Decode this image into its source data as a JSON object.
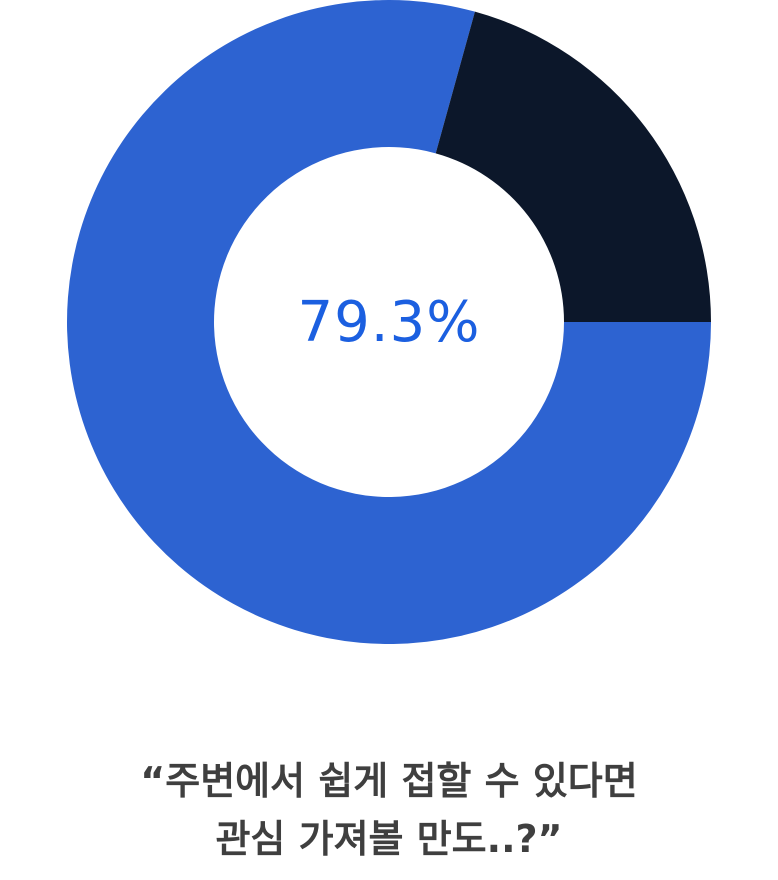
{
  "chart_data": {
    "type": "pie",
    "variant": "donut",
    "center_label": "79.3%",
    "slices": [
      {
        "value": 79.3,
        "color": "#2d63d1"
      },
      {
        "value": 20.7,
        "color": "#0c172a"
      }
    ]
  },
  "caption": {
    "line1": "“주변에서 쉽게 접할 수 있다면",
    "line2": "관심 가져볼 만도..?”"
  }
}
